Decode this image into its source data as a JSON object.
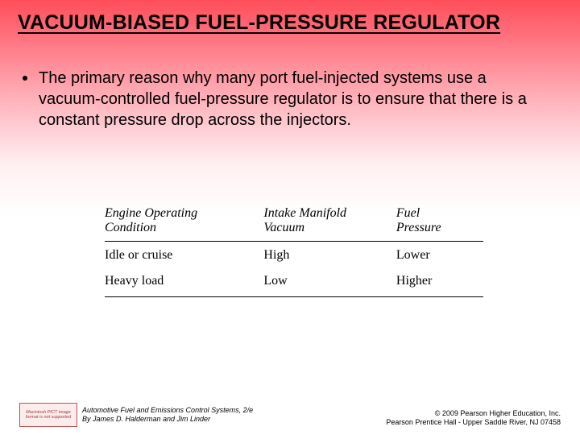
{
  "slide": {
    "title": "VACUUM-BIASED FUEL-PRESSURE REGULATOR",
    "bullet": "The primary reason why many port fuel-injected systems use a vacuum-controlled fuel-pressure regulator is to ensure that there is a constant pressure drop across the injectors.",
    "background_gradient": [
      "#ff4d5a",
      "#ffffff"
    ]
  },
  "table": {
    "type": "table",
    "font_family": "Times New Roman",
    "header_style": "italic",
    "border_color": "#000000",
    "columns": [
      {
        "label_line1": "Engine Operating",
        "label_line2": "Condition",
        "width_pct": 42
      },
      {
        "label_line1": "Intake Manifold",
        "label_line2": "Vacuum",
        "width_pct": 35
      },
      {
        "label_line1": "Fuel",
        "label_line2": "Pressure",
        "width_pct": 23
      }
    ],
    "rows": [
      [
        "Idle or cruise",
        "High",
        "Lower"
      ],
      [
        "Heavy load",
        "Low",
        "Higher"
      ]
    ]
  },
  "footer": {
    "placeholder_text": "Macintosh PICT image format is not supported",
    "left_line1": "Automotive Fuel and Emissions Control Systems, 2/e",
    "left_line2": "By James D. Halderman and Jim Linder",
    "right_line1": "© 2009 Pearson Higher Education, Inc.",
    "right_line2": "Pearson Prentice Hall - Upper Saddle River, NJ 07458"
  }
}
